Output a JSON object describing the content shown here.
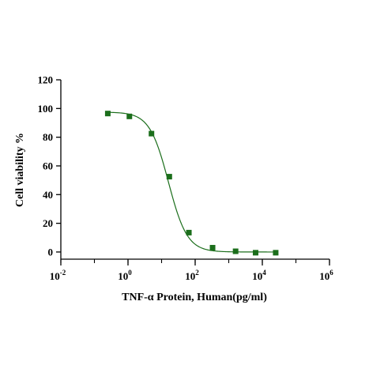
{
  "chart_data": {
    "type": "scatter",
    "title": "",
    "xlabel": "TNF-α Protein, Human(pg/ml)",
    "ylabel": "Cell viability %",
    "x_scale": "log10",
    "xlim": [
      0.01,
      1000000
    ],
    "ylim": [
      -5,
      120
    ],
    "y_ticks": [
      0,
      20,
      40,
      60,
      80,
      100,
      120
    ],
    "x_ticks": [
      {
        "value": 0.01,
        "base": "10",
        "exp": "-2"
      },
      {
        "value": 1,
        "base": "10",
        "exp": "0"
      },
      {
        "value": 100,
        "base": "10",
        "exp": "2"
      },
      {
        "value": 10000,
        "base": "10",
        "exp": "4"
      },
      {
        "value": 1000000,
        "base": "10",
        "exp": "6"
      }
    ],
    "grid": false,
    "legend": "none",
    "marker": "square",
    "color": "#1b6e1b",
    "fit": {
      "type": "four-parameter logistic",
      "top": 97.5,
      "bottom": 0,
      "ec50": 16,
      "hill": 1.55
    },
    "series": [
      {
        "x": [
          0.25,
          1.1,
          5,
          17,
          65,
          330,
          1600,
          6300,
          25000
        ],
        "y": [
          96.5,
          94.5,
          82.5,
          52.5,
          13.5,
          3,
          0.5,
          -0.5,
          -0.5
        ]
      }
    ]
  }
}
